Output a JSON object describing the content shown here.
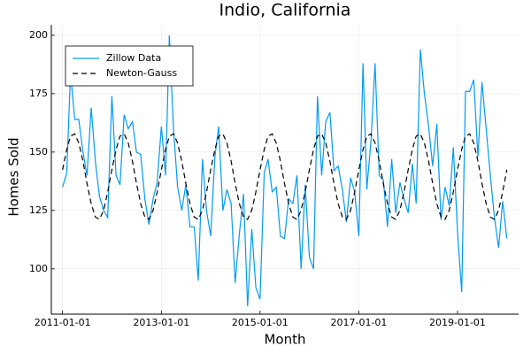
{
  "chart_data": {
    "type": "line",
    "title": "Indio, California",
    "x_label": "Month",
    "y_label": "Homes Sold",
    "x": [
      "2011-01-01",
      "2011-02-01",
      "2011-03-01",
      "2011-04-01",
      "2011-05-01",
      "2011-06-01",
      "2011-07-01",
      "2011-08-01",
      "2011-09-01",
      "2011-10-01",
      "2011-11-01",
      "2011-12-01",
      "2012-01-01",
      "2012-02-01",
      "2012-03-01",
      "2012-04-01",
      "2012-05-01",
      "2012-06-01",
      "2012-07-01",
      "2012-08-01",
      "2012-09-01",
      "2012-10-01",
      "2012-11-01",
      "2012-12-01",
      "2013-01-01",
      "2013-02-01",
      "2013-03-01",
      "2013-04-01",
      "2013-05-01",
      "2013-06-01",
      "2013-07-01",
      "2013-08-01",
      "2013-09-01",
      "2013-10-01",
      "2013-11-01",
      "2013-12-01",
      "2014-01-01",
      "2014-02-01",
      "2014-03-01",
      "2014-04-01",
      "2014-05-01",
      "2014-06-01",
      "2014-07-01",
      "2014-08-01",
      "2014-09-01",
      "2014-10-01",
      "2014-11-01",
      "2014-12-01",
      "2015-01-01",
      "2015-02-01",
      "2015-03-01",
      "2015-04-01",
      "2015-05-01",
      "2015-06-01",
      "2015-07-01",
      "2015-08-01",
      "2015-09-01",
      "2015-10-01",
      "2015-11-01",
      "2015-12-01",
      "2016-01-01",
      "2016-02-01",
      "2016-03-01",
      "2016-04-01",
      "2016-05-01",
      "2016-06-01",
      "2016-07-01",
      "2016-08-01",
      "2016-09-01",
      "2016-10-01",
      "2016-11-01",
      "2016-12-01",
      "2017-01-01",
      "2017-02-01",
      "2017-03-01",
      "2017-04-01",
      "2017-05-01",
      "2017-06-01",
      "2017-07-01",
      "2017-08-01",
      "2017-09-01",
      "2017-10-01",
      "2017-11-01",
      "2017-12-01",
      "2018-01-01",
      "2018-02-01",
      "2018-03-01",
      "2018-04-01",
      "2018-05-01",
      "2018-06-01",
      "2018-07-01",
      "2018-08-01",
      "2018-09-01",
      "2018-10-01",
      "2018-11-01",
      "2018-12-01",
      "2019-01-01",
      "2019-02-01",
      "2019-03-01",
      "2019-04-01",
      "2019-05-01",
      "2019-06-01",
      "2019-07-01",
      "2019-08-01",
      "2019-09-01",
      "2019-10-01",
      "2019-11-01",
      "2019-12-01",
      "2020-01-01"
    ],
    "series": [
      {
        "name": "Zillow Data",
        "color": "#009af9",
        "dash": false,
        "values": [
          135,
          141,
          184,
          164,
          164,
          150,
          140,
          169,
          146,
          131,
          125,
          122,
          174,
          140,
          136,
          166,
          160,
          163,
          150,
          149,
          130,
          119,
          130,
          137,
          161,
          140,
          200,
          160,
          135,
          125,
          136,
          118,
          118,
          95,
          147,
          125,
          114,
          148,
          161,
          125,
          134,
          128,
          94,
          115,
          132,
          84,
          117,
          92,
          87,
          141,
          147,
          133,
          135,
          114,
          113,
          130,
          128,
          140,
          100,
          136,
          105,
          100,
          174,
          140,
          163,
          167,
          142,
          144,
          134,
          120,
          139,
          133,
          114,
          188,
          134,
          155,
          188,
          140,
          138,
          118,
          147,
          124,
          137,
          130,
          124,
          145,
          128,
          194,
          175,
          161,
          144,
          162,
          121,
          135,
          127,
          152,
          116,
          90,
          176,
          176,
          181,
          148,
          180,
          160,
          140,
          122,
          109,
          129,
          113
        ]
      },
      {
        "name": "Newton-Gauss",
        "color": "#000000",
        "dash": true,
        "values": [
          142.4,
          151.1,
          156.8,
          157.8,
          153.9,
          146.1,
          136.6,
          127.9,
          122.2,
          121.2,
          125.1,
          132.9,
          142.4,
          151.1,
          156.8,
          157.8,
          153.9,
          146.1,
          136.6,
          127.9,
          122.2,
          121.2,
          125.1,
          132.9,
          142.4,
          151.1,
          156.8,
          157.8,
          153.9,
          146.1,
          136.6,
          127.9,
          122.2,
          121.2,
          125.1,
          132.9,
          142.4,
          151.1,
          156.8,
          157.8,
          153.9,
          146.1,
          136.6,
          127.9,
          122.2,
          121.2,
          125.1,
          132.9,
          142.4,
          151.1,
          156.8,
          157.8,
          153.9,
          146.1,
          136.6,
          127.9,
          122.2,
          121.2,
          125.1,
          132.9,
          142.4,
          151.1,
          156.8,
          157.8,
          153.9,
          146.1,
          136.6,
          127.9,
          122.2,
          121.2,
          125.1,
          132.9,
          142.4,
          151.1,
          156.8,
          157.8,
          153.9,
          146.1,
          136.6,
          127.9,
          122.2,
          121.2,
          125.1,
          132.9,
          142.4,
          151.1,
          156.8,
          157.8,
          153.9,
          146.1,
          136.6,
          127.9,
          122.2,
          121.2,
          125.1,
          132.9,
          142.4,
          151.1,
          156.8,
          157.8,
          153.9,
          146.1,
          136.6,
          127.9,
          122.2,
          121.2,
          125.1,
          132.9,
          142.4
        ]
      }
    ],
    "xlim": [
      "2010-10-10",
      "2020-03-28"
    ],
    "xticks": [
      "2011-01-01",
      "2013-01-01",
      "2015-01-01",
      "2017-01-01",
      "2019-01-01"
    ],
    "ylim": [
      80.6,
      204.5
    ],
    "yticks": [
      100,
      125,
      150,
      175,
      200
    ],
    "grid": true,
    "legend": "top-left"
  }
}
